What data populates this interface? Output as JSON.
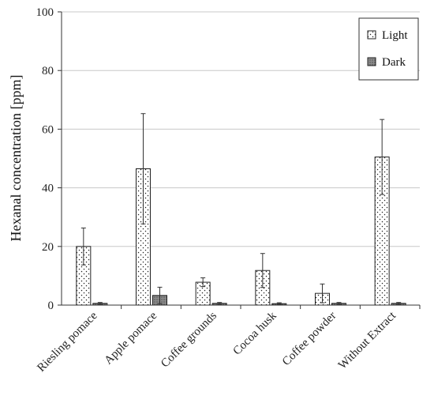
{
  "chart_data": {
    "type": "bar",
    "title": "",
    "xlabel": "",
    "ylabel": "Hexanal concentration [ppm]",
    "ylim": [
      0,
      100
    ],
    "yticks": [
      0,
      20,
      40,
      60,
      80,
      100
    ],
    "grid": "horizontal",
    "legend_position": "top-right",
    "categories": [
      "Riesling pomace",
      "Apple pomace",
      "Coffee grounds",
      "Cocoa husk",
      "Coffee powder",
      "Without Extract"
    ],
    "series": [
      {
        "name": "Light",
        "pattern": "dotted",
        "fill_color": "#ffffff",
        "values": [
          20.0,
          46.5,
          7.8,
          11.8,
          4.0,
          50.5
        ],
        "errors": [
          6.3,
          18.8,
          1.5,
          5.8,
          3.2,
          12.8
        ]
      },
      {
        "name": "Dark",
        "pattern": "dense-dotted",
        "fill_color": "#8a8a8a",
        "values": [
          0.6,
          3.3,
          0.6,
          0.5,
          0.6,
          0.6
        ],
        "errors": [
          0.3,
          2.8,
          0.3,
          0.3,
          0.3,
          0.3
        ]
      }
    ]
  }
}
